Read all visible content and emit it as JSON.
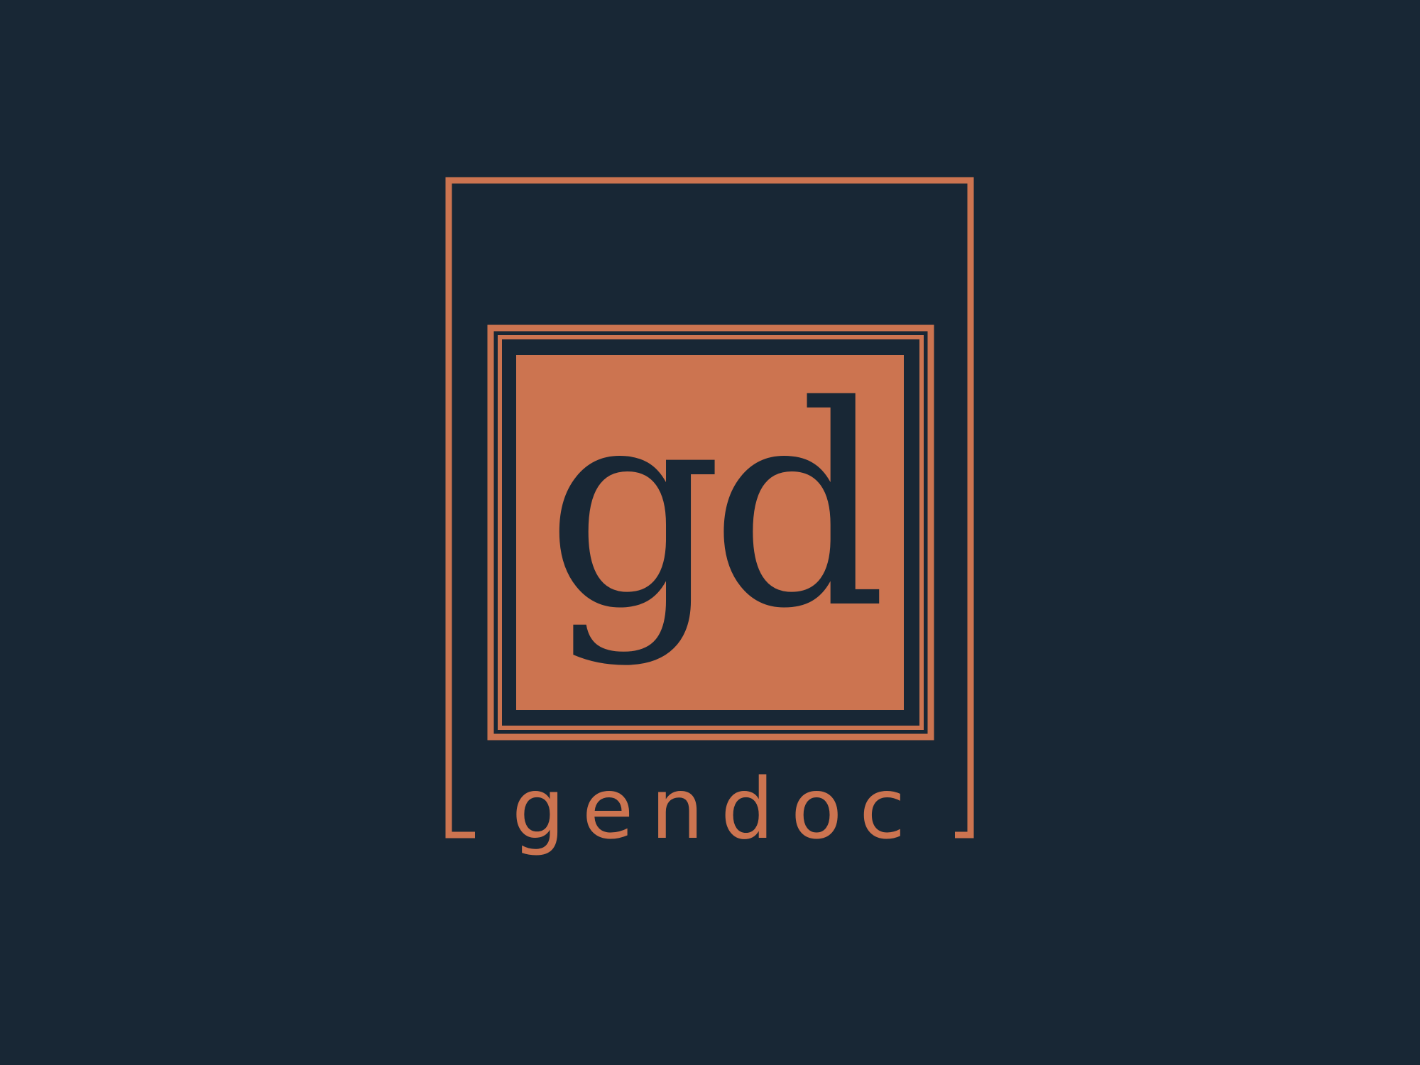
{
  "logo": {
    "monogram": "gd",
    "wordmark": "gendoc"
  },
  "colors": {
    "background": "#182735",
    "accent": "#cc7450"
  }
}
